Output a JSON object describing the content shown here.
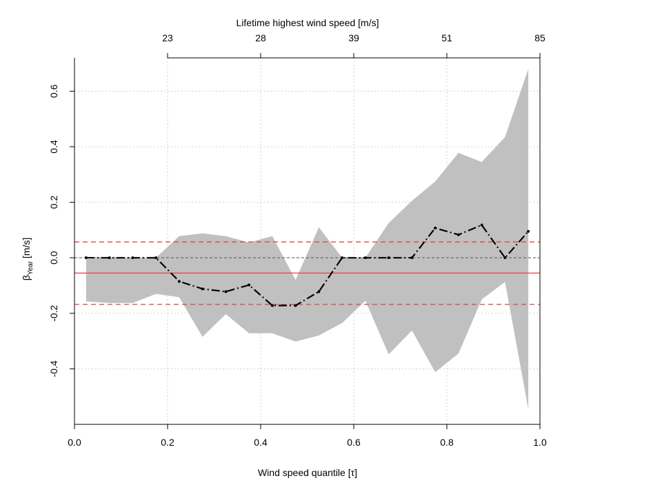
{
  "chart_data": {
    "type": "line",
    "title": "",
    "xlabel": "Wind speed quantile [τ]",
    "ylabel_main": "β",
    "ylabel_sub": "Year",
    "ylabel_rest": " [m/s]",
    "top_axis_label": "Lifetime highest wind speed [m/s]",
    "xlim": [
      0.0,
      1.0
    ],
    "ylim": [
      -0.6,
      0.72
    ],
    "x_ticks": [
      0.0,
      0.2,
      0.4,
      0.6,
      0.8,
      1.0
    ],
    "x_tick_labels": [
      "0.0",
      "0.2",
      "0.4",
      "0.6",
      "0.8",
      "1.0"
    ],
    "y_ticks": [
      -0.4,
      -0.2,
      0.0,
      0.2,
      0.4,
      0.6
    ],
    "y_tick_labels": [
      "-0.4",
      "-0.2",
      "0.0",
      "0.2",
      "0.4",
      "0.6"
    ],
    "top_ticks": [
      0.2,
      0.4,
      0.6,
      0.8,
      1.0
    ],
    "top_tick_labels": [
      "23",
      "28",
      "39",
      "51",
      "85"
    ],
    "grid": true,
    "x": [
      0.025,
      0.075,
      0.125,
      0.175,
      0.225,
      0.275,
      0.325,
      0.375,
      0.425,
      0.475,
      0.525,
      0.575,
      0.625,
      0.675,
      0.725,
      0.775,
      0.825,
      0.875,
      0.925,
      0.975
    ],
    "series": [
      {
        "values": [
          0.0,
          0.0,
          0.0,
          0.0,
          -0.085,
          -0.112,
          -0.122,
          -0.098,
          -0.172,
          -0.172,
          -0.122,
          0.0,
          0.0,
          0.0,
          0.0,
          0.107,
          0.083,
          0.118,
          0.0,
          0.095
        ]
      }
    ],
    "band": {
      "upper": [
        -0.005,
        0.0,
        0.0,
        0.0,
        0.078,
        0.088,
        0.078,
        0.055,
        0.078,
        -0.08,
        0.11,
        0.0,
        0.0,
        0.125,
        0.205,
        0.275,
        0.378,
        0.345,
        0.435,
        0.68
      ],
      "lower": [
        -0.157,
        -0.163,
        -0.163,
        -0.13,
        -0.142,
        -0.285,
        -0.203,
        -0.272,
        -0.272,
        -0.302,
        -0.28,
        -0.235,
        -0.155,
        -0.348,
        -0.262,
        -0.412,
        -0.345,
        -0.15,
        -0.087,
        -0.545
      ]
    },
    "reference_lines": {
      "mean": -0.055,
      "lower": -0.168,
      "upper": 0.057,
      "zero": 0.0
    },
    "colors": {
      "band": "#c0c0c0",
      "line": "#000000",
      "reference": "#e8413c",
      "grid": "#cfcfcf",
      "zero_line": "#555555"
    }
  }
}
